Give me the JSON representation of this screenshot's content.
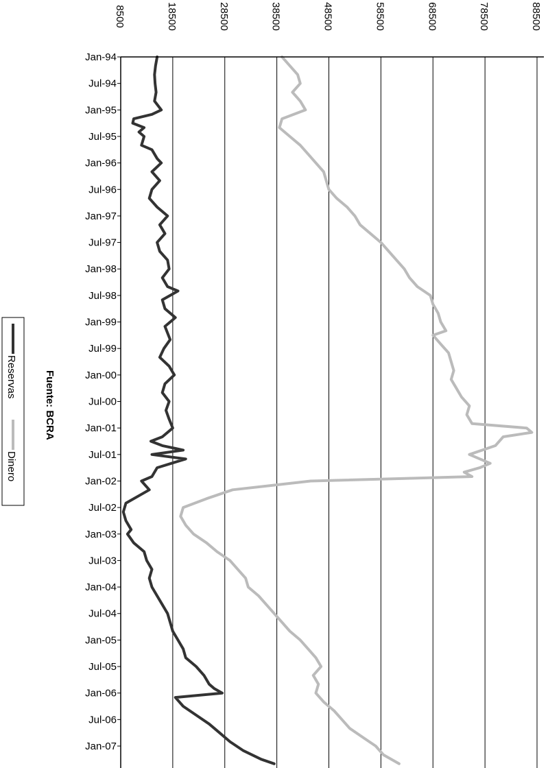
{
  "chart_data": {
    "type": "line",
    "orientation": "rotated-90-clockwise",
    "source_note": "Fuente: BCRA",
    "value_axis": {
      "range": [
        8500,
        88500
      ],
      "ticks": [
        "8500",
        "18500",
        "28500",
        "38500",
        "48500",
        "58500",
        "68500",
        "78500",
        "88500"
      ],
      "gridlines": true
    },
    "date_axis": {
      "range": [
        "1994-01",
        "2007-05"
      ],
      "ticks": [
        "Jan-94",
        "Jul-94",
        "Jan-95",
        "Jul-95",
        "Jan-96",
        "Jul-96",
        "Jan-97",
        "Jul-97",
        "Jan-98",
        "Jul-98",
        "Jan-99",
        "Jul-99",
        "Jan-00",
        "Jul-00",
        "Jan-01",
        "Jul-01",
        "Jan-02",
        "Jul-02",
        "Jan-03",
        "Jul-03",
        "Jan-04",
        "Jul-04",
        "Jan-05",
        "Jul-05",
        "Jan-06",
        "Jul-06",
        "Jan-07"
      ]
    },
    "legend": {
      "placement": "left",
      "entries": [
        "Reservas",
        "Dinero"
      ]
    },
    "series": [
      {
        "name": "Reservas",
        "color": "#333333",
        "points": [
          [
            "1994-01",
            15500
          ],
          [
            "1994-03",
            15200
          ],
          [
            "1994-05",
            15000
          ],
          [
            "1994-07",
            15100
          ],
          [
            "1994-09",
            15300
          ],
          [
            "1994-11",
            15000
          ],
          [
            "1995-01",
            16300
          ],
          [
            "1995-02",
            14500
          ],
          [
            "1995-03",
            11000
          ],
          [
            "1995-04",
            10800
          ],
          [
            "1995-05",
            13000
          ],
          [
            "1995-06",
            12000
          ],
          [
            "1995-07",
            13000
          ],
          [
            "1995-09",
            12500
          ],
          [
            "1995-10",
            14500
          ],
          [
            "1995-12",
            15500
          ],
          [
            "1996-01",
            16300
          ],
          [
            "1996-03",
            14500
          ],
          [
            "1996-05",
            16000
          ],
          [
            "1996-07",
            14500
          ],
          [
            "1996-09",
            14000
          ],
          [
            "1996-11",
            15500
          ],
          [
            "1997-01",
            17500
          ],
          [
            "1997-03",
            16000
          ],
          [
            "1997-05",
            17000
          ],
          [
            "1997-07",
            15500
          ],
          [
            "1997-09",
            16000
          ],
          [
            "1997-11",
            17500
          ],
          [
            "1998-01",
            17800
          ],
          [
            "1998-03",
            16500
          ],
          [
            "1998-05",
            17500
          ],
          [
            "1998-06",
            19500
          ],
          [
            "1998-08",
            16500
          ],
          [
            "1998-10",
            17000
          ],
          [
            "1998-12",
            19000
          ],
          [
            "1999-02",
            17000
          ],
          [
            "1999-05",
            18000
          ],
          [
            "1999-07",
            16800
          ],
          [
            "1999-09",
            16000
          ],
          [
            "1999-11",
            17800
          ],
          [
            "2000-01",
            18800
          ],
          [
            "2000-03",
            17000
          ],
          [
            "2000-05",
            16500
          ],
          [
            "2000-07",
            17800
          ],
          [
            "2000-09",
            17200
          ],
          [
            "2000-11",
            17800
          ],
          [
            "2001-01",
            18500
          ],
          [
            "2001-03",
            16500
          ],
          [
            "2001-04",
            14300
          ],
          [
            "2001-05",
            16500
          ],
          [
            "2001-06",
            20500
          ],
          [
            "2001-07",
            14500
          ],
          [
            "2001-08",
            21000
          ],
          [
            "2001-10",
            15500
          ],
          [
            "2001-12",
            14500
          ],
          [
            "2002-01",
            12500
          ],
          [
            "2002-03",
            14000
          ],
          [
            "2002-04",
            12500
          ],
          [
            "2002-06",
            9500
          ],
          [
            "2002-08",
            9000
          ],
          [
            "2002-10",
            9500
          ],
          [
            "2002-12",
            10500
          ],
          [
            "2003-01",
            9800
          ],
          [
            "2003-03",
            11000
          ],
          [
            "2003-05",
            13000
          ],
          [
            "2003-07",
            13500
          ],
          [
            "2003-09",
            14500
          ],
          [
            "2003-11",
            14000
          ],
          [
            "2004-01",
            14500
          ],
          [
            "2004-03",
            15500
          ],
          [
            "2004-05",
            16500
          ],
          [
            "2004-07",
            17500
          ],
          [
            "2004-09",
            18000
          ],
          [
            "2004-11",
            18500
          ],
          [
            "2005-01",
            19500
          ],
          [
            "2005-03",
            20500
          ],
          [
            "2005-05",
            21000
          ],
          [
            "2005-07",
            23000
          ],
          [
            "2005-09",
            24500
          ],
          [
            "2005-11",
            25500
          ],
          [
            "2005-12",
            26500
          ],
          [
            "2006-01",
            28000
          ],
          [
            "2006-02",
            19000
          ],
          [
            "2006-04",
            20500
          ],
          [
            "2006-06",
            23000
          ],
          [
            "2006-08",
            25500
          ],
          [
            "2006-10",
            27500
          ],
          [
            "2006-12",
            29500
          ],
          [
            "2007-02",
            32000
          ],
          [
            "2007-04",
            35500
          ],
          [
            "2007-05",
            38000
          ]
        ]
      },
      {
        "name": "Dinero",
        "color": "#bbbbbb",
        "points": [
          [
            "1994-01",
            39500
          ],
          [
            "1994-03",
            41000
          ],
          [
            "1994-05",
            42500
          ],
          [
            "1994-07",
            43000
          ],
          [
            "1994-09",
            41500
          ],
          [
            "1994-11",
            43000
          ],
          [
            "1995-01",
            44000
          ],
          [
            "1995-03",
            39500
          ],
          [
            "1995-05",
            39000
          ],
          [
            "1995-07",
            41000
          ],
          [
            "1995-09",
            43000
          ],
          [
            "1995-11",
            44500
          ],
          [
            "1996-01",
            46000
          ],
          [
            "1996-03",
            47500
          ],
          [
            "1996-05",
            48000
          ],
          [
            "1996-07",
            48500
          ],
          [
            "1996-09",
            50000
          ],
          [
            "1996-11",
            52000
          ],
          [
            "1997-01",
            53500
          ],
          [
            "1997-03",
            54500
          ],
          [
            "1997-05",
            56500
          ],
          [
            "1997-07",
            58500
          ],
          [
            "1997-09",
            60000
          ],
          [
            "1997-11",
            61500
          ],
          [
            "1998-01",
            63000
          ],
          [
            "1998-03",
            64000
          ],
          [
            "1998-05",
            65500
          ],
          [
            "1998-07",
            68000
          ],
          [
            "1998-09",
            68500
          ],
          [
            "1998-11",
            69500
          ],
          [
            "1999-01",
            70000
          ],
          [
            "1999-03",
            71000
          ],
          [
            "1999-04",
            68500
          ],
          [
            "1999-06",
            70000
          ],
          [
            "1999-08",
            71500
          ],
          [
            "1999-10",
            72000
          ],
          [
            "1999-12",
            72500
          ],
          [
            "2000-02",
            72000
          ],
          [
            "2000-04",
            73000
          ],
          [
            "2000-06",
            74000
          ],
          [
            "2000-08",
            75500
          ],
          [
            "2000-10",
            75000
          ],
          [
            "2000-12",
            76000
          ],
          [
            "2001-01",
            86500
          ],
          [
            "2001-02",
            87500
          ],
          [
            "2001-03",
            82000
          ],
          [
            "2001-05",
            80500
          ],
          [
            "2001-07",
            75500
          ],
          [
            "2001-09",
            79500
          ],
          [
            "2001-10",
            77500
          ],
          [
            "2001-11",
            74500
          ],
          [
            "2001-12",
            76000
          ],
          [
            "2002-01",
            45000
          ],
          [
            "2002-03",
            30000
          ],
          [
            "2002-05",
            25000
          ],
          [
            "2002-07",
            20500
          ],
          [
            "2002-09",
            20000
          ],
          [
            "2002-11",
            21000
          ],
          [
            "2003-01",
            22500
          ],
          [
            "2003-03",
            25000
          ],
          [
            "2003-05",
            27000
          ],
          [
            "2003-07",
            29500
          ],
          [
            "2003-09",
            31000
          ],
          [
            "2003-11",
            32500
          ],
          [
            "2004-01",
            33000
          ],
          [
            "2004-03",
            35000
          ],
          [
            "2004-05",
            36500
          ],
          [
            "2004-07",
            38000
          ],
          [
            "2004-09",
            39500
          ],
          [
            "2004-11",
            41000
          ],
          [
            "2005-01",
            43000
          ],
          [
            "2005-03",
            44500
          ],
          [
            "2005-05",
            46000
          ],
          [
            "2005-07",
            47000
          ],
          [
            "2005-09",
            45500
          ],
          [
            "2005-11",
            46500
          ],
          [
            "2006-01",
            46000
          ],
          [
            "2006-03",
            47500
          ],
          [
            "2006-05",
            49500
          ],
          [
            "2006-07",
            51000
          ],
          [
            "2006-09",
            52500
          ],
          [
            "2006-11",
            55000
          ],
          [
            "2007-01",
            57500
          ],
          [
            "2007-03",
            59000
          ],
          [
            "2007-05",
            62000
          ]
        ]
      }
    ]
  }
}
